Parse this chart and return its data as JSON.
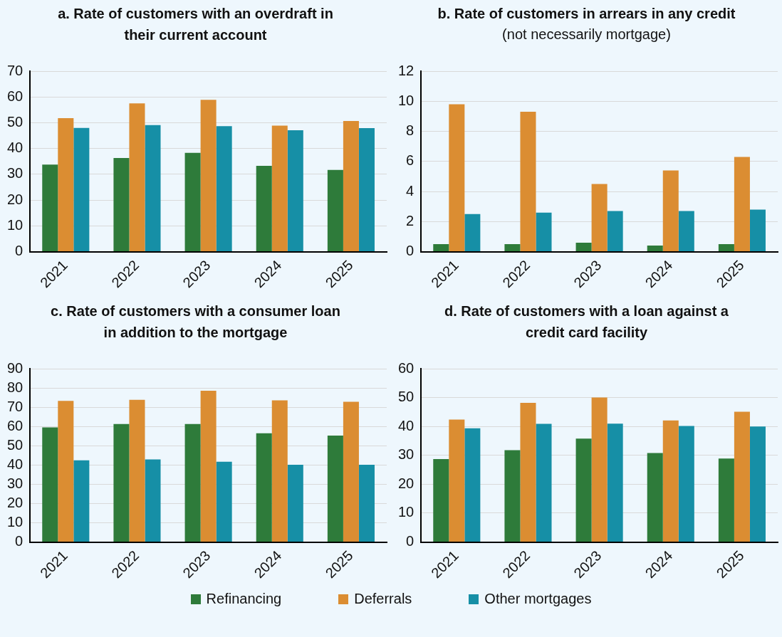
{
  "chart_data": [
    {
      "type": "bar",
      "title": "a. Rate of customers with an overdraft in their current account",
      "categories": [
        "2021",
        "2022",
        "2023",
        "2024",
        "2025"
      ],
      "ylim": [
        0,
        70
      ],
      "yticks": [
        0,
        10,
        20,
        30,
        40,
        50,
        60,
        70
      ],
      "grid": "y",
      "legend": "bottom",
      "series": [
        {
          "name": "Refinancing",
          "color": "#2e7b3a",
          "values": [
            33.8,
            36.3,
            38.3,
            33.3,
            31.7
          ]
        },
        {
          "name": "Deferrals",
          "color": "#db8d32",
          "values": [
            51.8,
            57.5,
            58.9,
            48.9,
            50.7
          ]
        },
        {
          "name": "Other mortgages",
          "color": "#168fa6",
          "values": [
            48.0,
            49.1,
            48.7,
            47.1,
            47.9
          ]
        }
      ]
    },
    {
      "type": "bar",
      "title": "b. Rate of customers in arrears in any credit",
      "subtitle": "(not necessarily mortgage)",
      "categories": [
        "2021",
        "2022",
        "2023",
        "2024",
        "2025"
      ],
      "ylim": [
        0,
        12
      ],
      "yticks": [
        0,
        2,
        4,
        6,
        8,
        10,
        12
      ],
      "grid": "y",
      "legend": "bottom",
      "series": [
        {
          "name": "Refinancing",
          "color": "#2e7b3a",
          "values": [
            0.5,
            0.5,
            0.6,
            0.4,
            0.5
          ]
        },
        {
          "name": "Deferrals",
          "color": "#db8d32",
          "values": [
            9.8,
            9.3,
            4.5,
            5.4,
            6.3
          ]
        },
        {
          "name": "Other mortgages",
          "color": "#168fa6",
          "values": [
            2.5,
            2.6,
            2.7,
            2.7,
            2.8
          ]
        }
      ]
    },
    {
      "type": "bar",
      "title": "c. Rate of customers with a consumer loan in addition to the mortgage",
      "categories": [
        "2021",
        "2022",
        "2023",
        "2024",
        "2025"
      ],
      "ylim": [
        0,
        90
      ],
      "yticks": [
        0,
        10,
        20,
        30,
        40,
        50,
        60,
        70,
        80,
        90
      ],
      "grid": "y",
      "legend": "bottom",
      "series": [
        {
          "name": "Refinancing",
          "color": "#2e7b3a",
          "values": [
            59.5,
            61.3,
            61.3,
            56.5,
            55.3
          ]
        },
        {
          "name": "Deferrals",
          "color": "#db8d32",
          "values": [
            73.3,
            73.8,
            78.5,
            73.6,
            72.8
          ]
        },
        {
          "name": "Other mortgages",
          "color": "#168fa6",
          "values": [
            42.4,
            42.9,
            41.7,
            40.1,
            40.1
          ]
        }
      ]
    },
    {
      "type": "bar",
      "title": "d. Rate of customers with a loan against a credit card facility",
      "categories": [
        "2021",
        "2022",
        "2023",
        "2024",
        "2025"
      ],
      "ylim": [
        0,
        60
      ],
      "yticks": [
        0,
        10,
        20,
        30,
        40,
        50,
        60
      ],
      "grid": "y",
      "legend": "bottom",
      "series": [
        {
          "name": "Refinancing",
          "color": "#2e7b3a",
          "values": [
            28.7,
            31.8,
            35.8,
            30.8,
            28.9
          ]
        },
        {
          "name": "Deferrals",
          "color": "#db8d32",
          "values": [
            42.4,
            48.2,
            50.0,
            42.1,
            45.1
          ]
        },
        {
          "name": "Other mortgages",
          "color": "#168fa6",
          "values": [
            39.4,
            40.9,
            41.0,
            40.2,
            40.0
          ]
        }
      ]
    }
  ]
}
